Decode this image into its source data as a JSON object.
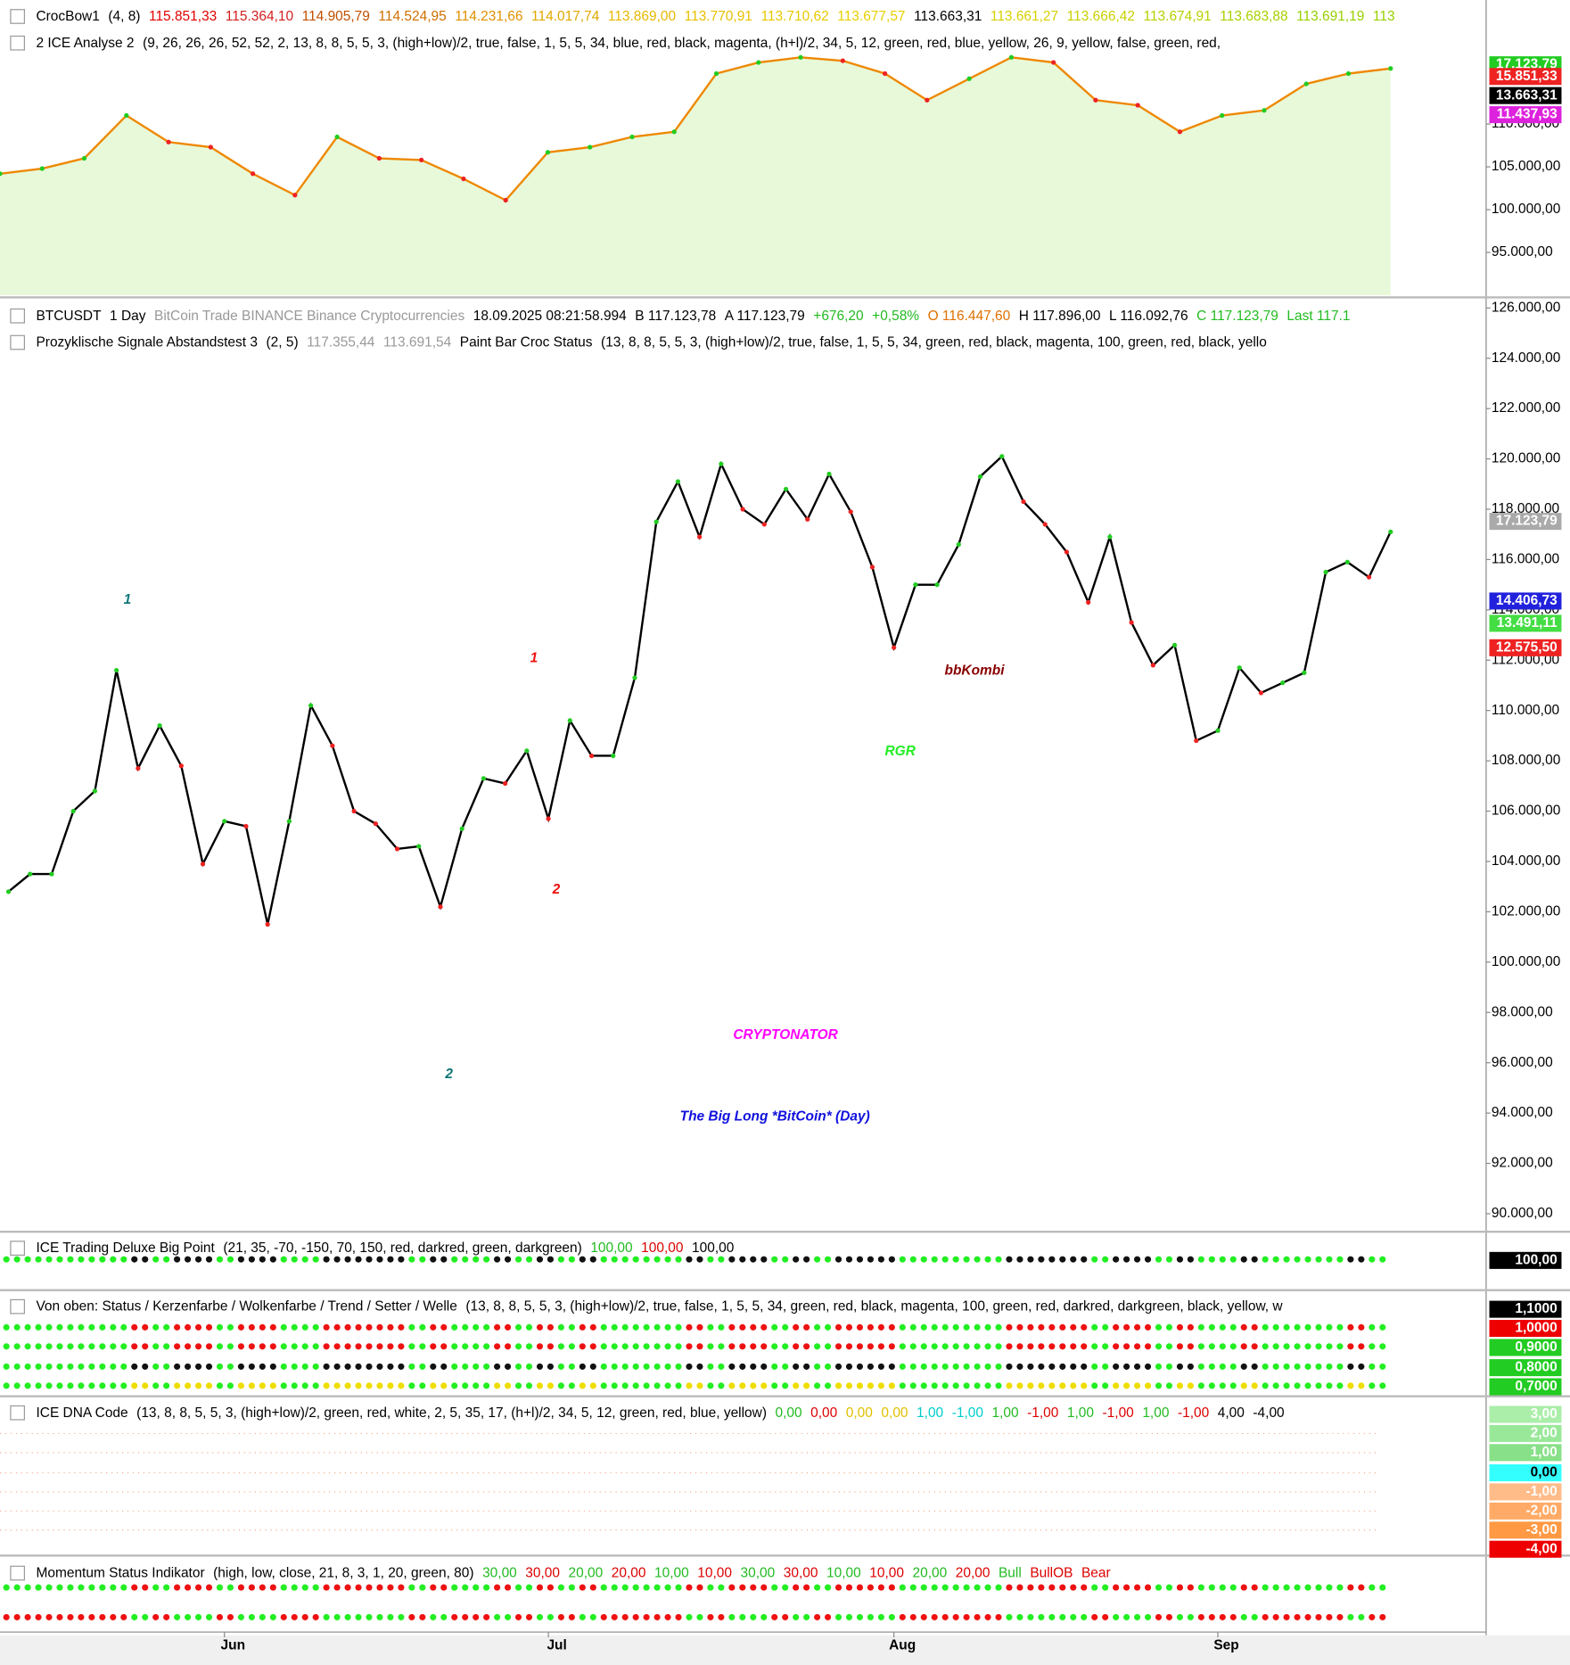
{
  "top_panel": {
    "rows": [
      [
        {
          "text": "CrocBow1",
          "color": "#000000"
        },
        {
          "text": "(4,  8)",
          "color": "#000000"
        },
        {
          "text": "115.851,33",
          "color": "#e00000"
        },
        {
          "text": "115.364,10",
          "color": "#d02020"
        },
        {
          "text": "114.905,79",
          "color": "#c05000"
        },
        {
          "text": "114.524,95",
          "color": "#d07000"
        },
        {
          "text": "114.231,66",
          "color": "#e09000"
        },
        {
          "text": "114.017,74",
          "color": "#e0a800"
        },
        {
          "text": "113.869,00",
          "color": "#e8b800"
        },
        {
          "text": "113.770,91",
          "color": "#e8c000"
        },
        {
          "text": "113.710,62",
          "color": "#e8c800"
        },
        {
          "text": "113.677,57",
          "color": "#e8d000"
        },
        {
          "text": "113.663,31",
          "color": "#000000"
        },
        {
          "text": "113.661,27",
          "color": "#d8d000"
        },
        {
          "text": "113.666,42",
          "color": "#c8d000"
        },
        {
          "text": "113.674,91",
          "color": "#b8d000"
        },
        {
          "text": "113.683,88",
          "color": "#a8d000"
        },
        {
          "text": "113.691,19",
          "color": "#98d000"
        },
        {
          "text": "113",
          "color": "#98d000"
        }
      ],
      [
        {
          "text": "2 ICE Analyse 2",
          "color": "#000000"
        },
        {
          "text": "(9,  26,  26,  26,  52,  52,  2,  13,  8,  8,  5,  5,  3,  (high+low)/2,  true,  false,  1,  5,  5,  34,  blue,  red,  black,  magenta,  (h+l)/2,  34,  5,  12,  green,  red,  blue,  yellow,  26,  9,  yellow,  false,  green,  red,",
          "color": "#000000"
        }
      ]
    ],
    "badges": [
      {
        "text": "17.123,79",
        "color": "#ffffff",
        "bg": "#22cc22"
      },
      {
        "text": "15.851,33",
        "color": "#ffffff",
        "bg": "#ee2222"
      },
      {
        "text": "13.663,31",
        "color": "#ffffff",
        "bg": "#000000"
      },
      {
        "text": "11.437,93",
        "color": "#ffffff",
        "bg": "#dd22dd"
      }
    ]
  },
  "main_panel": {
    "rows": [
      [
        {
          "text": "BTCUSDT",
          "color": "#000000"
        },
        {
          "text": "1 Day",
          "color": "#000000"
        },
        {
          "text": "BitCoin  Trade  BINANCE  Binance  Cryptocurrencies",
          "color": "#999999"
        },
        {
          "text": "18.09.2025  08:21:58.994",
          "color": "#000000"
        },
        {
          "text": "B 117.123,78",
          "color": "#000000"
        },
        {
          "text": "A 117.123,79",
          "color": "#000000"
        },
        {
          "text": "+676,20",
          "color": "#22bb22"
        },
        {
          "text": "+0,58%",
          "color": "#22bb22"
        },
        {
          "text": "O 116.447,60",
          "color": "#e07000"
        },
        {
          "text": "H 117.896,00",
          "color": "#000000"
        },
        {
          "text": "L 116.092,76",
          "color": "#000000"
        },
        {
          "text": "C 117.123,79",
          "color": "#22bb22"
        },
        {
          "text": "Last 117.1",
          "color": "#22bb22"
        }
      ],
      [
        {
          "text": "Prozyklische Signale Abstandstest 3",
          "color": "#000000"
        },
        {
          "text": "(2,  5)",
          "color": "#000000"
        },
        {
          "text": "117.355,44",
          "color": "#999999"
        },
        {
          "text": "113.691,54",
          "color": "#999999"
        },
        {
          "text": "Paint Bar Croc Status",
          "color": "#000000"
        },
        {
          "text": "(13,  8,  8,  5,  5,  3,  (high+low)/2,  true,  false,  1,  5,  5,  34,  green,  red,  black,  magenta,  100,  green,  red,  black,  yello",
          "color": "#000000"
        }
      ]
    ],
    "badges": [
      {
        "text": "17.123,79",
        "color": "#ffffff",
        "bg": "#aaaaaa"
      },
      {
        "text": "14.406,73",
        "color": "#ffffff",
        "bg": "#2222dd"
      },
      {
        "text": "13.491,11",
        "color": "#ffffff",
        "bg": "#44dd44"
      },
      {
        "text": "12.575,50",
        "color": "#ffffff",
        "bg": "#ee2222"
      }
    ]
  },
  "indicators": [
    {
      "row": [
        {
          "text": "ICE Trading Deluxe Big Point",
          "color": "#000000"
        },
        {
          "text": "(21,  35,  -70,  -150,  70,  150,  red,  darkred,  green,  darkgreen)",
          "color": "#000000"
        },
        {
          "text": "100,00",
          "color": "#22bb22"
        },
        {
          "text": "100,00",
          "color": "#dd0000"
        },
        {
          "text": "100,00",
          "color": "#000000"
        }
      ],
      "badges": [
        {
          "text": "100,00",
          "color": "#ffffff",
          "bg": "#000000"
        }
      ]
    },
    {
      "row": [
        {
          "text": "Von oben: Status / Kerzenfarbe / Wolkenfarbe / Trend / Setter / Welle",
          "color": "#000000"
        },
        {
          "text": "(13,  8,  8,  5,  5,  3,  (high+low)/2,  true,  false,  1,  5,  5,  34,  green,  red,  black,  magenta,  100,  green,  red,  darkred,  darkgreen,  black,  yellow,  w",
          "color": "#000000"
        }
      ],
      "badges": [
        {
          "text": "1,1000",
          "color": "#ffffff",
          "bg": "#000000"
        },
        {
          "text": "1,0000",
          "color": "#ffffff",
          "bg": "#ee0000"
        },
        {
          "text": "0,9000",
          "color": "#ffffff",
          "bg": "#22cc22"
        },
        {
          "text": "0,8000",
          "color": "#ffffff",
          "bg": "#22cc22"
        },
        {
          "text": "0,7000",
          "color": "#ffffff",
          "bg": "#22cc22"
        }
      ]
    },
    {
      "row": [
        {
          "text": "ICE DNA Code",
          "color": "#000000"
        },
        {
          "text": "(13,  8,  8,  5,  5,  3,  (high+low)/2,  green,  red,  white,  2,  5,  35,  17,  (h+l)/2,  34,  5,  12,  green,  red,  blue,  yellow)",
          "color": "#000000"
        },
        {
          "text": "0,00",
          "color": "#22bb22"
        },
        {
          "text": "0,00",
          "color": "#dd0000"
        },
        {
          "text": "0,00",
          "color": "#e0c000"
        },
        {
          "text": "0,00",
          "color": "#e0c000"
        },
        {
          "text": "1,00",
          "color": "#00cccc"
        },
        {
          "text": "-1,00",
          "color": "#00cccc"
        },
        {
          "text": "1,00",
          "color": "#22bb22"
        },
        {
          "text": "-1,00",
          "color": "#dd0000"
        },
        {
          "text": "1,00",
          "color": "#22bb22"
        },
        {
          "text": "-1,00",
          "color": "#dd0000"
        },
        {
          "text": "1,00",
          "color": "#22bb22"
        },
        {
          "text": "-1,00",
          "color": "#dd0000"
        },
        {
          "text": "4,00",
          "color": "#000000"
        },
        {
          "text": "-4,00",
          "color": "#000000"
        }
      ],
      "badges": [
        {
          "text": "3,00",
          "color": "#ffffff",
          "bg": "#aaeeaa"
        },
        {
          "text": "2,00",
          "color": "#ffffff",
          "bg": "#99e899"
        },
        {
          "text": "1,00",
          "color": "#ffffff",
          "bg": "#88e088"
        },
        {
          "text": "0,00",
          "color": "#000000",
          "bg": "#33ffff"
        },
        {
          "text": "-1,00",
          "color": "#ffffff",
          "bg": "#ffbb88"
        },
        {
          "text": "-2,00",
          "color": "#ffffff",
          "bg": "#ffaa66"
        },
        {
          "text": "-3,00",
          "color": "#ffffff",
          "bg": "#ff9944"
        },
        {
          "text": "-4,00",
          "color": "#ffffff",
          "bg": "#ee0000"
        }
      ]
    },
    {
      "row": [
        {
          "text": "Momentum Status Indikator",
          "color": "#000000"
        },
        {
          "text": "(high,  low,  close,  21,  8,  3,  1,  20,  green,  80)",
          "color": "#000000"
        },
        {
          "text": "30,00",
          "color": "#22bb22"
        },
        {
          "text": "30,00",
          "color": "#dd0000"
        },
        {
          "text": "20,00",
          "color": "#22bb22"
        },
        {
          "text": "20,00",
          "color": "#dd0000"
        },
        {
          "text": "10,00",
          "color": "#22bb22"
        },
        {
          "text": "10,00",
          "color": "#dd0000"
        },
        {
          "text": "30,00",
          "color": "#22bb22"
        },
        {
          "text": "30,00",
          "color": "#dd0000"
        },
        {
          "text": "10,00",
          "color": "#22bb22"
        },
        {
          "text": "10,00",
          "color": "#dd0000"
        },
        {
          "text": "20,00",
          "color": "#22bb22"
        },
        {
          "text": "20,00",
          "color": "#dd0000"
        },
        {
          "text": "Bull",
          "color": "#22bb22"
        },
        {
          "text": "BullOB",
          "color": "#dd0000"
        },
        {
          "text": "Bear",
          "color": "#dd0000"
        }
      ],
      "badges": []
    }
  ],
  "chart_data": [
    {
      "type": "line",
      "color": "#ee8800",
      "values": [
        104200,
        104800,
        106000,
        111000,
        107900,
        107300,
        104200,
        101700,
        108500,
        106000,
        105800,
        103600,
        101100,
        106700,
        107300,
        108500,
        109100,
        115900,
        117200,
        117800,
        117400,
        115900,
        112800,
        115300,
        117800,
        117200,
        112800,
        112200,
        109100,
        111000,
        111600,
        114700,
        115900,
        116500
      ],
      "ylim": [
        90000,
        124500
      ],
      "yticks": [
        {
          "value": 95000,
          "label": "95.000,00"
        },
        {
          "value": 100000,
          "label": "100.000,00"
        },
        {
          "value": 105000,
          "label": "105.000,00"
        },
        {
          "value": 110000,
          "label": "110.000,00"
        }
      ]
    },
    {
      "type": "line",
      "color": "#000000",
      "categories": [
        null,
        null,
        null,
        null,
        null,
        null,
        null,
        null,
        null,
        null,
        "Jun",
        null,
        null,
        null,
        null,
        null,
        null,
        null,
        null,
        null,
        null,
        null,
        null,
        null,
        null,
        "Jul",
        null,
        null,
        null,
        null,
        null,
        null,
        null,
        null,
        null,
        null,
        null,
        null,
        null,
        null,
        null,
        "Aug",
        null,
        null,
        null,
        null,
        null,
        null,
        null,
        null,
        null,
        null,
        null,
        null,
        null,
        null,
        "Sep",
        null,
        null,
        null,
        null,
        null,
        null,
        null,
        null
      ],
      "values": [
        102800,
        103500,
        103500,
        106000,
        106800,
        111600,
        107700,
        109400,
        107800,
        103900,
        105600,
        105400,
        101500,
        105600,
        110200,
        108600,
        106000,
        105500,
        104500,
        104600,
        102200,
        105300,
        107300,
        107100,
        108400,
        105700,
        109600,
        108200,
        108200,
        111300,
        117500,
        119100,
        116900,
        119800,
        118000,
        117400,
        118800,
        117600,
        119400,
        117900,
        115700,
        112500,
        115000,
        115000,
        116600,
        119300,
        120100,
        118300,
        117400,
        116300,
        114300,
        116900,
        113500,
        111800,
        112600,
        108800,
        109200,
        111700,
        110700,
        111100,
        111500,
        115500,
        115900,
        115300,
        117100
      ],
      "ylim": [
        90000,
        126000
      ],
      "yticks": [
        {
          "value": 90000,
          "label": "90.000,00"
        },
        {
          "value": 92000,
          "label": "92.000,00"
        },
        {
          "value": 94000,
          "label": "94.000,00"
        },
        {
          "value": 96000,
          "label": "96.000,00"
        },
        {
          "value": 98000,
          "label": "98.000,00"
        },
        {
          "value": 100000,
          "label": "100.000,00"
        },
        {
          "value": 102000,
          "label": "102.000,00"
        },
        {
          "value": 104000,
          "label": "104.000,00"
        },
        {
          "value": 106000,
          "label": "106.000,00"
        },
        {
          "value": 108000,
          "label": "108.000,00"
        },
        {
          "value": 110000,
          "label": "110.000,00"
        },
        {
          "value": 112000,
          "label": "112.000,00"
        },
        {
          "value": 114000,
          "label": "114.000,00"
        },
        {
          "value": 116000,
          "label": "116.000,00"
        },
        {
          "value": 118000,
          "label": "118.000,00"
        },
        {
          "value": 120000,
          "label": "120.000,00"
        },
        {
          "value": 122000,
          "label": "122.000,00"
        },
        {
          "value": 124000,
          "label": "124.000,00"
        },
        {
          "value": 126000,
          "label": "126.000,00"
        }
      ],
      "annotations": [
        {
          "text": "1",
          "color": "#117777"
        },
        {
          "text": "2",
          "color": "#117777"
        },
        {
          "text": "1",
          "color": "#ee1111"
        },
        {
          "text": "2",
          "color": "#ee1111"
        },
        {
          "text": "bbKombi",
          "color": "#880000"
        },
        {
          "text": "RGR",
          "color": "#22ee22"
        },
        {
          "text": "CRYPTONATOR",
          "color": "#ff00ff"
        },
        {
          "text": "The Big Long *BitCoin* (Day)",
          "color": "#1111dd"
        }
      ]
    }
  ]
}
